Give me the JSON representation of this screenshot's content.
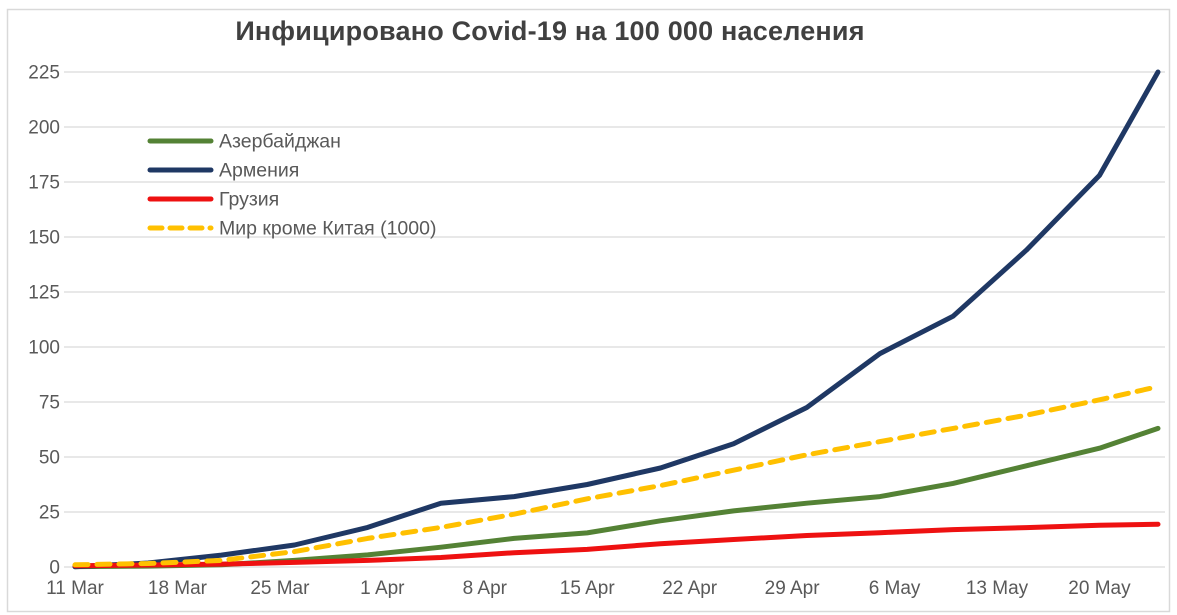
{
  "window": {
    "background": "#FFFFFF",
    "border_color": "#D9D9D9"
  },
  "chart_data": {
    "type": "line",
    "title": "Инфицировано Covid-19 на 100 000 населения",
    "xlabel": "",
    "ylabel": "",
    "title_color": "#404040",
    "axis_label_color": "#595959",
    "gridline_color": "#D9D9D9",
    "grid": true,
    "legend_position": "upper-left-inside",
    "ylim": [
      0,
      230
    ],
    "y_ticks": [
      0,
      25,
      50,
      75,
      100,
      125,
      150,
      175,
      200,
      225
    ],
    "x_tick_labels": [
      "11 Mar",
      "18 Mar",
      "25 Mar",
      "1 Apr",
      "8 Apr",
      "15 Apr",
      "22 Apr",
      "29 Apr",
      "6 May",
      "13 May",
      "20 May"
    ],
    "x_tick_days": [
      0,
      7,
      14,
      21,
      28,
      35,
      42,
      49,
      56,
      63,
      70
    ],
    "x_range_days": [
      0,
      74
    ],
    "x_sample_days": [
      0,
      5,
      10,
      15,
      20,
      25,
      30,
      35,
      40,
      45,
      50,
      55,
      60,
      65,
      70,
      74
    ],
    "x_sample_dates": [
      "11 Mar",
      "16 Mar",
      "21 Mar",
      "26 Mar",
      "31 Mar",
      "5 Apr",
      "10 Apr",
      "15 Apr",
      "20 Apr",
      "25 Apr",
      "30 Apr",
      "5 May",
      "10 May",
      "15 May",
      "20 May",
      "24 May"
    ],
    "series": [
      {
        "name": "Азербайджан",
        "color": "#548235",
        "dash": false,
        "values": [
          0.2,
          0.4,
          1.0,
          3.0,
          5.5,
          9.0,
          13.0,
          15.5,
          21.0,
          25.5,
          29.0,
          32.0,
          38.0,
          46.0,
          54.0,
          63.0
        ]
      },
      {
        "name": "Армения",
        "color": "#1F3864",
        "dash": false,
        "values": [
          0.1,
          1.8,
          5.4,
          10.0,
          18.0,
          29.0,
          32.0,
          37.5,
          45.0,
          56.0,
          72.5,
          97.0,
          114.0,
          144.0,
          178.0,
          225.0
        ]
      },
      {
        "name": "Грузия",
        "color": "#EE1111",
        "dash": false,
        "values": [
          0.6,
          0.9,
          1.3,
          2.1,
          3.0,
          4.3,
          6.5,
          8.0,
          10.6,
          12.5,
          14.3,
          15.6,
          17.0,
          17.9,
          19.0,
          19.4
        ]
      },
      {
        "name": "Мир кроме Китая (1000)",
        "color": "#FFC000",
        "dash": true,
        "values": [
          1.0,
          1.6,
          3.0,
          7.0,
          13.0,
          18.0,
          24.0,
          31.0,
          37.0,
          44.0,
          51.0,
          57.0,
          63.0,
          69.0,
          76.0,
          82.0
        ]
      }
    ]
  }
}
